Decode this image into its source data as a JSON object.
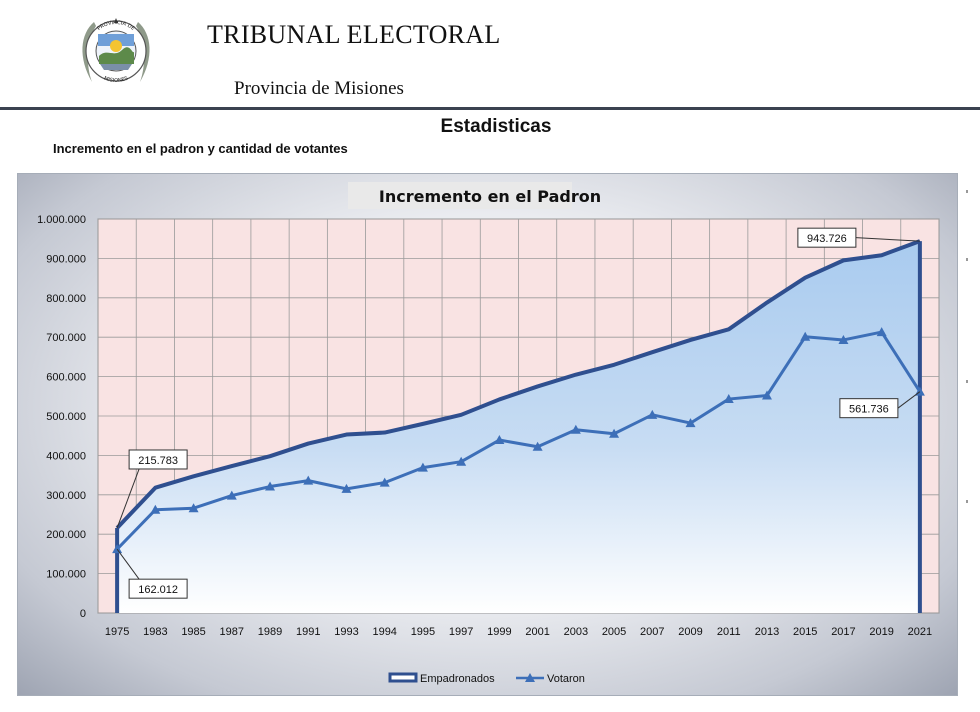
{
  "header": {
    "org_title": "TRIBUNAL ELECTORAL",
    "org_subtitle": "Provincia de Misiones",
    "seal_text_top": "PROVINCIA DE",
    "seal_text_bottom": "MISIONES"
  },
  "page": {
    "heading": "Estadisticas",
    "section_subtitle": "Incremento en el padron y cantidad de votantes"
  },
  "colors": {
    "plot_background": "#f9e3e3",
    "area_fill": "#b7d3f0",
    "empadronados_line": "#2f4f8f",
    "votaron_line": "#3d6fb8"
  },
  "chart_data": {
    "type": "area",
    "title": "Incremento en el Padron",
    "x": [
      "1975",
      "1983",
      "1985",
      "1987",
      "1989",
      "1991",
      "1993",
      "1994",
      "1995",
      "1997",
      "1999",
      "2001",
      "2003",
      "2005",
      "2007",
      "2009",
      "2011",
      "2013",
      "2015",
      "2017",
      "2019",
      "2021"
    ],
    "series": [
      {
        "name": "Empadronados",
        "style": "area-line",
        "values": [
          215783,
          318000,
          347000,
          373000,
          398000,
          430000,
          453000,
          458000,
          480000,
          503000,
          542000,
          575000,
          605000,
          630000,
          662000,
          693000,
          720000,
          788000,
          851000,
          895000,
          908000,
          943726
        ]
      },
      {
        "name": "Votaron",
        "style": "line-triangle-markers",
        "values": [
          162012,
          262000,
          266000,
          298000,
          321000,
          336000,
          315000,
          331000,
          369000,
          384000,
          439000,
          422000,
          465000,
          455000,
          503000,
          482000,
          543000,
          552000,
          701000,
          693000,
          713000,
          561736
        ]
      }
    ],
    "annotations": [
      {
        "text": "215.783",
        "series": "Empadronados",
        "x": "1975",
        "placement": "upper-right"
      },
      {
        "text": "162.012",
        "series": "Votaron",
        "x": "1975",
        "placement": "lower-right"
      },
      {
        "text": "943.726",
        "series": "Empadronados",
        "x": "2021",
        "placement": "upper-left"
      },
      {
        "text": "561.736",
        "series": "Votaron",
        "x": "2021",
        "placement": "lower-left"
      }
    ],
    "y_ticks": [
      "0",
      "100.000",
      "200.000",
      "300.000",
      "400.000",
      "500.000",
      "600.000",
      "700.000",
      "800.000",
      "900.000",
      "1.000.000"
    ],
    "ylim": [
      0,
      1000000
    ],
    "grid": true,
    "legend": {
      "placement": "bottom",
      "entries": [
        "Empadronados",
        "Votaron"
      ]
    }
  }
}
